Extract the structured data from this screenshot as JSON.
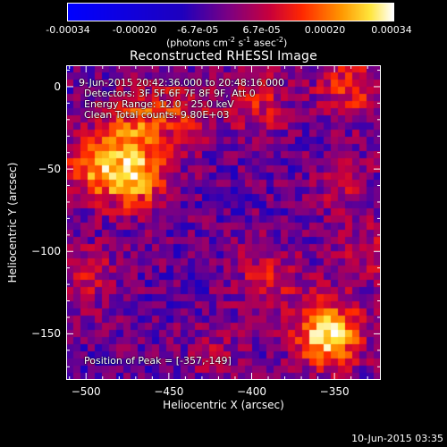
{
  "chart_data": {
    "type": "heatmap",
    "title": "Reconstructed RHESSI Image",
    "xlabel": "Heliocentric X (arcsec)",
    "ylabel": "Heliocentric Y (arcsec)",
    "xlim": [
      -512,
      -322
    ],
    "ylim": [
      -178,
      13
    ],
    "x_ticks": [
      -500,
      -450,
      -400,
      -350
    ],
    "y_ticks": [
      0,
      -50,
      -100,
      -150
    ],
    "colorbar": {
      "range": [
        -0.00034,
        0.00034
      ],
      "ticks": [
        "-0.00034",
        "-0.00020",
        "-6.7e-05",
        "6.7e-05",
        "0.00020",
        "0.00034"
      ],
      "tick_values": [
        -0.00034,
        -0.0002,
        -6.7e-05,
        6.7e-05,
        0.0002,
        0.00034
      ],
      "unit_label": "(photons cm",
      "unit_exp1": "-2",
      "unit_mid": " s",
      "unit_exp2": "-1",
      "unit_mid2": " asec",
      "unit_exp3": "-2",
      "unit_end": ")"
    },
    "info_lines": [
      "9-Jun-2015 20:42:36.000 to 20:48:16.000",
      "Detectors: 3F 5F 6F 7F 8F 9F, Att 0",
      "Energy Range: 12.0 - 25.0 keV",
      "Clean     Total counts: 9.80E+03"
    ],
    "peak_label": "Position of Peak = [-357,-149]",
    "peak": [
      -357,
      -149
    ],
    "sources": [
      {
        "x": -354,
        "y": -150,
        "value": 0.00034
      },
      {
        "x": -470,
        "y": -55,
        "value": 0.00026
      },
      {
        "x": -495,
        "y": -48,
        "value": 0.00022
      },
      {
        "x": -470,
        "y": -22,
        "value": 0.00018
      },
      {
        "x": -440,
        "y": -15,
        "value": 0.00012
      },
      {
        "x": -340,
        "y": 0,
        "value": 0.00016
      },
      {
        "x": -395,
        "y": -10,
        "value": 0.00012
      },
      {
        "x": -390,
        "y": -115,
        "value": 0.00012
      },
      {
        "x": -330,
        "y": -100,
        "value": 0.0001
      },
      {
        "x": -500,
        "y": -115,
        "value": 0.0001
      },
      {
        "x": -345,
        "y": -60,
        "value": 8e-05
      },
      {
        "x": -420,
        "y": -160,
        "value": 7e-05
      }
    ]
  },
  "footer": {
    "date": "10-Jun-2015 03:35"
  }
}
